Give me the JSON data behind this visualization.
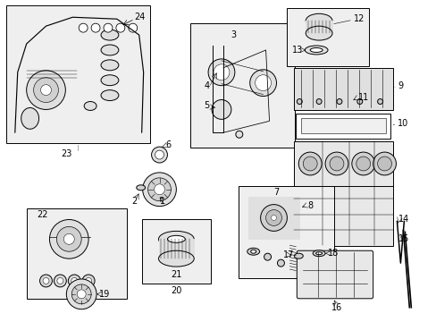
{
  "bg_color": "#ffffff",
  "line_color": "#000000",
  "box_bg": "#f0f0f0"
}
